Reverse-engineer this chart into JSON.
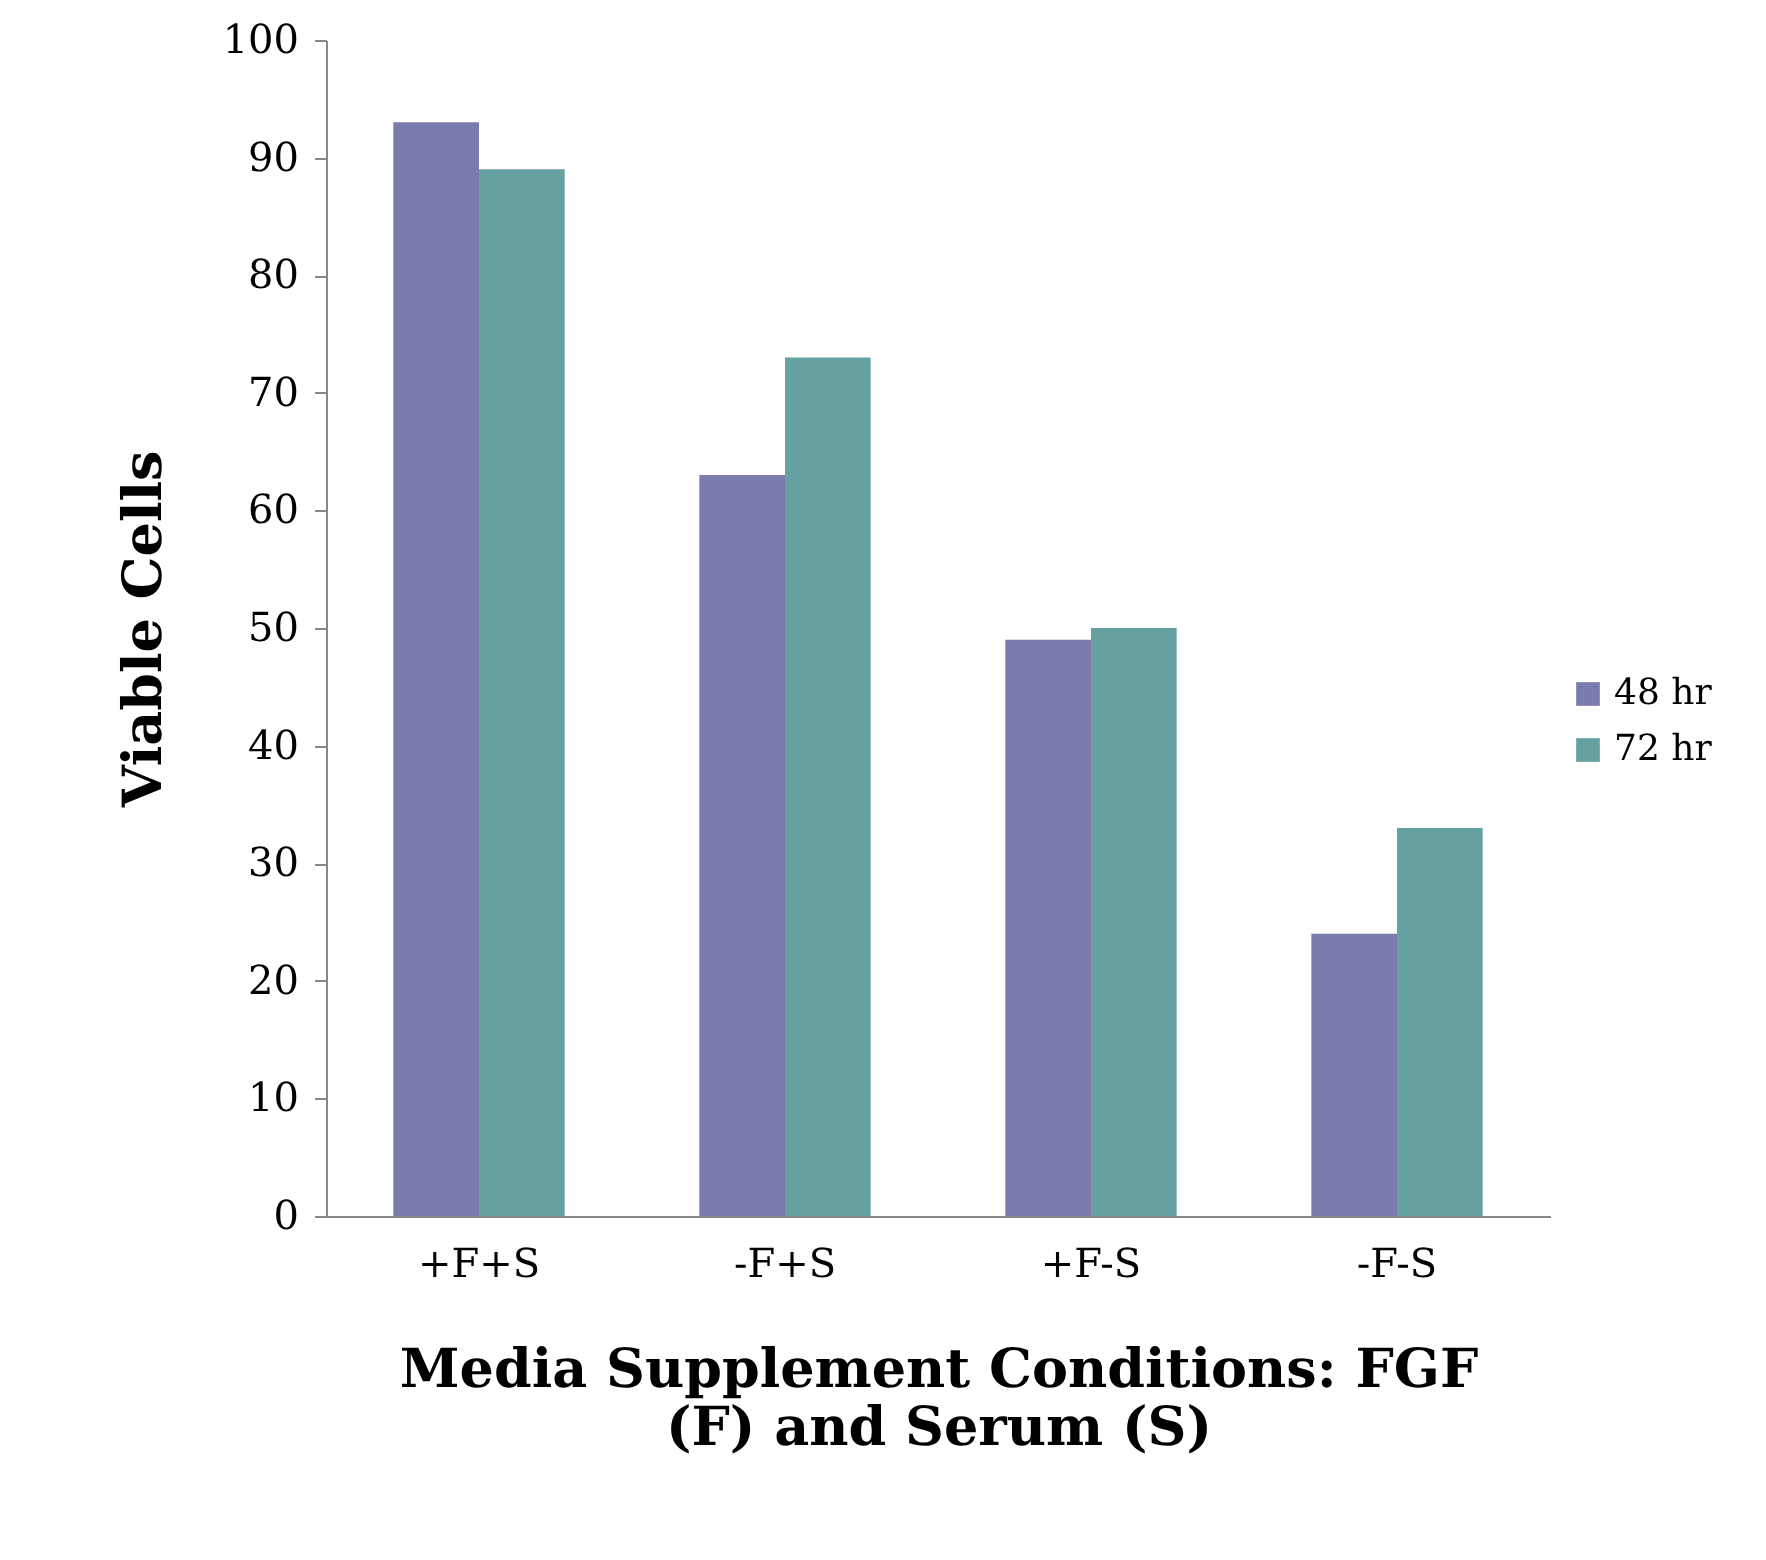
{
  "chart_data": {
    "type": "bar",
    "xlabel": "Media Supplement Conditions: FGF (F) and Serum (S)",
    "ylabel": "Viable Cells",
    "categories": [
      "+F+S",
      "-F+S",
      "+F-S",
      "-F-S"
    ],
    "series": [
      {
        "name": "48 hr",
        "color": "#7b7bad",
        "values": [
          93,
          63,
          49,
          24
        ]
      },
      {
        "name": "72 hr",
        "color": "#66a1a1",
        "values": [
          89,
          73,
          50,
          33
        ]
      }
    ],
    "ylim": [
      0,
      100
    ],
    "yticks": [
      0,
      10,
      20,
      30,
      40,
      50,
      60,
      70,
      80,
      90,
      100
    ],
    "grid": false,
    "legend": "right"
  }
}
